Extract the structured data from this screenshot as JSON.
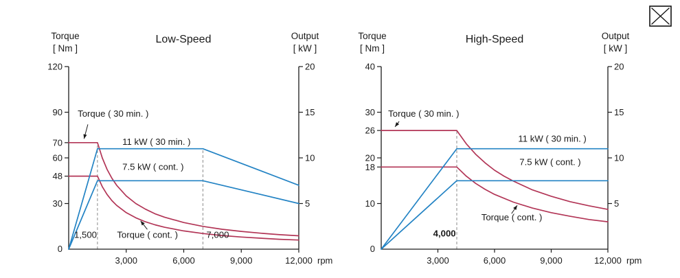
{
  "window": {
    "close_icon": "close"
  },
  "chart_data": [
    {
      "type": "line",
      "title": "Low-Speed",
      "left_axis": {
        "label_line1": "Torque",
        "label_line2": "[ Nm ]",
        "max": 120,
        "ticks": [
          30,
          48,
          60,
          70,
          90,
          120
        ],
        "origin_label": "0"
      },
      "right_axis": {
        "label_line1": "Output",
        "label_line2": "[ kW ]",
        "max": 20,
        "ticks": [
          5,
          10,
          15,
          20
        ]
      },
      "x_axis": {
        "max": 12000,
        "unit": "rpm",
        "ticks": [
          {
            "value": 3000,
            "label": "3,000"
          },
          {
            "value": 6000,
            "label": "6,000"
          },
          {
            "value": 9000,
            "label": "9,000"
          },
          {
            "value": 12000,
            "label": "12,000"
          }
        ]
      },
      "reference_lines": [
        {
          "x": 1500,
          "y_top": 70
        },
        {
          "x": 7000,
          "y_top": 66
        }
      ],
      "series": [
        {
          "name": "Torque ( 30 min. )",
          "axis": "left",
          "color": "#b23556",
          "points": [
            [
              0,
              70
            ],
            [
              1500,
              70
            ],
            [
              1750,
              60
            ],
            [
              2000,
              52.5
            ],
            [
              2250,
              46.7
            ],
            [
              2500,
              42
            ],
            [
              3000,
              35
            ],
            [
              3500,
              30
            ],
            [
              4000,
              26.3
            ],
            [
              4500,
              23.3
            ],
            [
              5000,
              21
            ],
            [
              6000,
              17.5
            ],
            [
              7000,
              15
            ],
            [
              8000,
              13.1
            ],
            [
              9000,
              11.7
            ],
            [
              10000,
              10.5
            ],
            [
              11000,
              9.5
            ],
            [
              12000,
              8.8
            ]
          ]
        },
        {
          "name": "Torque ( cont. )",
          "axis": "left",
          "color": "#b23556",
          "points": [
            [
              0,
              48
            ],
            [
              1500,
              48
            ],
            [
              1750,
              41.1
            ],
            [
              2000,
              36
            ],
            [
              2250,
              32
            ],
            [
              2500,
              28.8
            ],
            [
              3000,
              24
            ],
            [
              3500,
              20.6
            ],
            [
              4000,
              18
            ],
            [
              4500,
              16
            ],
            [
              5000,
              14.4
            ],
            [
              6000,
              12
            ],
            [
              7000,
              10.3
            ],
            [
              8000,
              9
            ],
            [
              9000,
              8
            ],
            [
              10000,
              7.2
            ],
            [
              11000,
              6.5
            ],
            [
              12000,
              6
            ]
          ]
        },
        {
          "name": "11 kW ( 30 min. )",
          "axis": "right",
          "color": "#2383c4",
          "points": [
            [
              0,
              0
            ],
            [
              1500,
              11
            ],
            [
              7000,
              11
            ],
            [
              12000,
              7
            ]
          ]
        },
        {
          "name": "7.5 kW ( cont. )",
          "axis": "right",
          "color": "#2383c4",
          "points": [
            [
              0,
              0
            ],
            [
              1500,
              7.5
            ],
            [
              7000,
              7.5
            ],
            [
              12000,
              5
            ]
          ]
        }
      ],
      "annotations": [
        {
          "text": "Torque ( 30 min. )",
          "x": 470,
          "y": 87,
          "anchor": "start",
          "bold": false,
          "arrow": {
            "x1": 1000,
            "y1": 82,
            "x2": 800,
            "y2": 72.5
          }
        },
        {
          "text": "11 kW ( 30 min. )",
          "x": 2800,
          "y": 68.5,
          "anchor": "start",
          "bold": false
        },
        {
          "text": "7.5 kW ( cont. )",
          "x": 2800,
          "y": 52,
          "anchor": "start",
          "bold": false
        },
        {
          "text": "1,500",
          "x": 1470,
          "y": 7.5,
          "anchor": "end",
          "bold": false
        },
        {
          "text": "Torque ( cont. )",
          "x": 2520,
          "y": 7.5,
          "anchor": "start",
          "bold": false,
          "arrow": {
            "x1": 4100,
            "y1": 13,
            "x2": 3750,
            "y2": 18.6
          }
        },
        {
          "text": "7,000",
          "x": 7180,
          "y": 7.5,
          "anchor": "start",
          "bold": false
        }
      ]
    },
    {
      "type": "line",
      "title": "High-Speed",
      "left_axis": {
        "label_line1": "Torque",
        "label_line2": "[ Nm ]",
        "max": 40,
        "ticks": [
          10,
          18,
          20,
          26,
          30,
          40
        ],
        "origin_label": "0"
      },
      "right_axis": {
        "label_line1": "Output",
        "label_line2": "[ kW ]",
        "max": 20,
        "ticks": [
          5,
          10,
          15,
          20
        ]
      },
      "x_axis": {
        "max": 12000,
        "unit": "rpm",
        "ticks": [
          {
            "value": 3000,
            "label": "3,000"
          },
          {
            "value": 6000,
            "label": "6,000"
          },
          {
            "value": 9000,
            "label": "9,000"
          },
          {
            "value": 12000,
            "label": "12,000"
          }
        ]
      },
      "reference_lines": [
        {
          "x": 4000,
          "y_top": 26
        }
      ],
      "series": [
        {
          "name": "Torque ( 30 min. )",
          "axis": "left",
          "color": "#b23556",
          "points": [
            [
              0,
              26
            ],
            [
              4000,
              26
            ],
            [
              4500,
              23.1
            ],
            [
              5000,
              20.8
            ],
            [
              5500,
              18.9
            ],
            [
              6000,
              17.3
            ],
            [
              6500,
              16
            ],
            [
              7000,
              14.9
            ],
            [
              8000,
              13
            ],
            [
              9000,
              11.6
            ],
            [
              10000,
              10.4
            ],
            [
              11000,
              9.5
            ],
            [
              12000,
              8.7
            ]
          ]
        },
        {
          "name": "Torque ( cont. )",
          "axis": "left",
          "color": "#b23556",
          "points": [
            [
              0,
              18
            ],
            [
              4000,
              18
            ],
            [
              4500,
              16
            ],
            [
              5000,
              14.4
            ],
            [
              5500,
              13.1
            ],
            [
              6000,
              12
            ],
            [
              7000,
              10.3
            ],
            [
              8000,
              9
            ],
            [
              9000,
              8
            ],
            [
              10000,
              7.2
            ],
            [
              11000,
              6.5
            ],
            [
              12000,
              6
            ]
          ]
        },
        {
          "name": "11 kW ( 30 min. )",
          "axis": "right",
          "color": "#2383c4",
          "points": [
            [
              0,
              0
            ],
            [
              4000,
              11
            ],
            [
              12000,
              11
            ]
          ]
        },
        {
          "name": "7.5 kW ( cont. )",
          "axis": "right",
          "color": "#2383c4",
          "points": [
            [
              0,
              0
            ],
            [
              4000,
              7.5
            ],
            [
              12000,
              7.5
            ]
          ]
        }
      ],
      "annotations": [
        {
          "text": "Torque ( 30 min. )",
          "x": 370,
          "y": 29,
          "anchor": "start",
          "bold": false,
          "arrow": {
            "x1": 950,
            "y1": 28,
            "x2": 730,
            "y2": 26.8
          }
        },
        {
          "text": "11 kW ( 30 min. )",
          "x": 7250,
          "y": 23.5,
          "anchor": "start",
          "bold": false
        },
        {
          "text": "7.5 kW ( cont. )",
          "x": 7320,
          "y": 18.4,
          "anchor": "start",
          "bold": false
        },
        {
          "text": "Torque ( cont. )",
          "x": 5300,
          "y": 6.3,
          "anchor": "start",
          "bold": false,
          "arrow": {
            "x1": 6900,
            "y1": 7.8,
            "x2": 7200,
            "y2": 9.6
          }
        },
        {
          "text": "4,000",
          "x": 3950,
          "y": 2.8,
          "anchor": "end",
          "bold": true
        }
      ]
    }
  ]
}
